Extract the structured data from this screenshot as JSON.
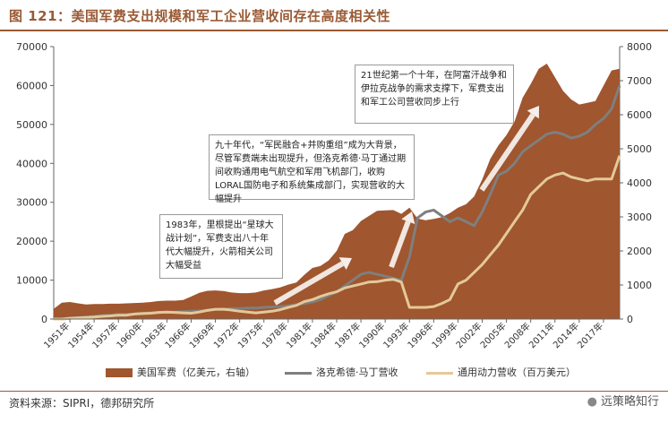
{
  "header": {
    "title": "图 121：美国军费支出规模和军工企业营收间存在高度相关性"
  },
  "footer": {
    "source": "资料来源：SIPRI，德邦研究所",
    "watermark": "远策略知行"
  },
  "legend": {
    "items": [
      {
        "label": "美国军费（亿美元，右轴）",
        "color": "#a0562e",
        "kind": "area"
      },
      {
        "label": "洛克希德·马丁营收",
        "color": "#7f7f7f",
        "kind": "line"
      },
      {
        "label": "通用动力营收（百万美元）",
        "color": "#e3c99a",
        "kind": "line"
      }
    ]
  },
  "annotations": [
    {
      "id": "note-1983",
      "text": "1983年，里根提出“星球大战计划”，军费支出八十年代大幅提升，火箭相关公司大幅受益"
    },
    {
      "id": "note-90s",
      "text": "九十年代，“军民融合+并购重组”成为大背景，尽管军费端未出现提升，但洛克希德·马丁通过期间收购通用电气航空和军用飞机部门，收购LORAL国防电子和系统集成部门，实现营收的大幅提升"
    },
    {
      "id": "note-21c",
      "text": "21世纪第一个十年，在阿富汗战争和伊拉克战争的需求支撑下，军费支出和军工公司营收同步上行"
    }
  ],
  "chart_data": {
    "type": "area",
    "title": "图 121：美国军费支出规模和军工企业营收间存在高度相关性",
    "x": [
      1949,
      1950,
      1951,
      1952,
      1953,
      1954,
      1955,
      1956,
      1957,
      1958,
      1959,
      1960,
      1961,
      1962,
      1963,
      1964,
      1965,
      1966,
      1967,
      1968,
      1969,
      1970,
      1971,
      1972,
      1973,
      1974,
      1975,
      1976,
      1977,
      1978,
      1979,
      1980,
      1981,
      1982,
      1983,
      1984,
      1985,
      1986,
      1987,
      1988,
      1989,
      1990,
      1991,
      1992,
      1993,
      1994,
      1995,
      1996,
      1997,
      1998,
      1999,
      2000,
      2001,
      2002,
      2003,
      2004,
      2005,
      2006,
      2007,
      2008,
      2009,
      2010,
      2011,
      2012,
      2013,
      2014,
      2015,
      2016,
      2017,
      2018,
      2019
    ],
    "x_tick_labels": [
      "1951年",
      "1954年",
      "1957年",
      "1960年",
      "1963年",
      "1966年",
      "1969年",
      "1972年",
      "1975年",
      "1978年",
      "1981年",
      "1984年",
      "1987年",
      "1990年",
      "1993年",
      "1996年",
      "1999年",
      "2002年",
      "2005年",
      "2008年",
      "2011年",
      "2014年",
      "2017年"
    ],
    "x_ticks": [
      1951,
      1954,
      1957,
      1960,
      1963,
      1966,
      1969,
      1972,
      1975,
      1978,
      1981,
      1984,
      1987,
      1990,
      1993,
      1996,
      1999,
      2002,
      2005,
      2008,
      2011,
      2014,
      2017
    ],
    "left_axis": {
      "ylim": [
        0,
        70000
      ],
      "ticks": [
        0,
        10000,
        20000,
        30000,
        40000,
        50000,
        60000,
        70000
      ]
    },
    "right_axis": {
      "ylim": [
        0,
        8000
      ],
      "ticks": [
        0,
        1000,
        2000,
        3000,
        4000,
        5000,
        6000,
        7000,
        8000
      ]
    },
    "series": [
      {
        "name": "美国军费（亿美元，右轴）",
        "axis": "right",
        "type": "area",
        "color": "#a0562e",
        "values": [
          300,
          480,
          500,
          460,
          430,
          440,
          440,
          450,
          450,
          460,
          470,
          480,
          500,
          530,
          540,
          540,
          560,
          660,
          770,
          830,
          840,
          820,
          780,
          760,
          760,
          780,
          840,
          880,
          930,
          1010,
          1070,
          1300,
          1500,
          1560,
          1720,
          2000,
          2500,
          2610,
          2880,
          3030,
          3180,
          3190,
          3200,
          3090,
          3270,
          2950,
          2900,
          2940,
          2990,
          3110,
          3270,
          3370,
          3600,
          4100,
          4700,
          5100,
          5400,
          5800,
          6500,
          6900,
          7350,
          7500,
          7100,
          6700,
          6450,
          6300,
          6350,
          6400,
          6850,
          7300,
          7350
        ]
      },
      {
        "name": "洛克希德·马丁营收",
        "axis": "left",
        "type": "line",
        "color": "#7f7f7f",
        "values": [
          0,
          0,
          200,
          400,
          500,
          700,
          900,
          1000,
          1200,
          1200,
          1300,
          1500,
          1600,
          1700,
          1700,
          1800,
          1900,
          2000,
          2100,
          2300,
          2500,
          2600,
          2700,
          2700,
          2800,
          2800,
          3000,
          3100,
          3200,
          3400,
          3700,
          4000,
          4400,
          5000,
          6000,
          7000,
          8500,
          10000,
          11500,
          12000,
          11500,
          11000,
          10500,
          10000,
          16000,
          26000,
          27500,
          28000,
          26500,
          25000,
          26000,
          25000,
          24000,
          27500,
          32000,
          37000,
          38000,
          40000,
          43000,
          44500,
          46000,
          47500,
          48000,
          47500,
          46500,
          47000,
          48000,
          50000,
          51500,
          54000,
          60000
        ]
      },
      {
        "name": "通用动力营收（百万美元）",
        "axis": "left",
        "type": "line",
        "color": "#e3c99a",
        "values": [
          0,
          0,
          200,
          300,
          400,
          500,
          700,
          800,
          1000,
          1000,
          1300,
          1400,
          1500,
          1700,
          1800,
          1700,
          1600,
          1500,
          1800,
          2200,
          2500,
          2500,
          2300,
          2000,
          1800,
          1600,
          1800,
          2000,
          2400,
          3000,
          3500,
          4500,
          5000,
          5800,
          6500,
          7000,
          8000,
          8500,
          9000,
          9500,
          9600,
          10000,
          10200,
          9500,
          3000,
          3000,
          3000,
          3200,
          4000,
          5000,
          9000,
          10000,
          12000,
          14000,
          16500,
          19000,
          22000,
          25000,
          28000,
          32000,
          34000,
          36000,
          37000,
          37500,
          36500,
          36000,
          35500,
          36000,
          36000,
          36000,
          42000
        ]
      }
    ]
  }
}
